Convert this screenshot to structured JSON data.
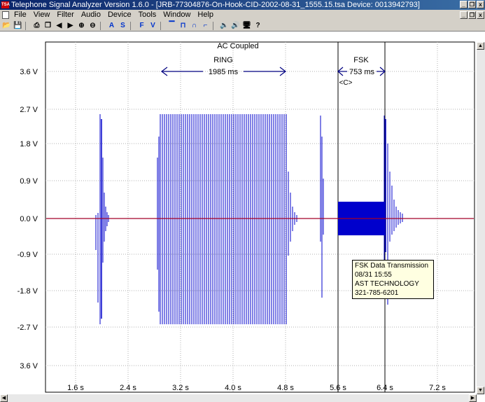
{
  "window": {
    "title": "Telephone Signal Analyzer Version 1.6.0 - [JRB-77304876-On-Hook-CID-2002-08-31_1555.15.tsa  Device: 0013942793]",
    "app_icon_text": "TSA",
    "buttons": [
      "_",
      "❐",
      "x"
    ]
  },
  "menu": {
    "items": [
      "File",
      "View",
      "Filter",
      "Audio",
      "Device",
      "Tools",
      "Window",
      "Help"
    ]
  },
  "toolbar": {
    "tools": [
      "open-icon",
      "save-icon",
      "print-icon",
      "copy-icon",
      "prev-icon",
      "next-icon",
      "zoom-in-icon",
      "zoom-out-icon",
      "A",
      "S",
      "F",
      "V",
      "pulse-icon",
      "ring-icon",
      "step-up-icon",
      "step-down-icon",
      "speaker-icon",
      "speaker-play-icon",
      "device-icon",
      "help-icon"
    ],
    "letter_a": "A",
    "letter_s": "S",
    "letter_f": "F",
    "letter_v": "V"
  },
  "plot": {
    "header": "AC Coupled",
    "y_ticks": [
      "3.6 V",
      "2.7 V",
      "1.8 V",
      "0.9 V",
      "0.0 V",
      "-0.9 V",
      "-1.8 V",
      "-2.7 V",
      "3.6 V"
    ],
    "x_ticks": [
      "1.6 s",
      "2.4 s",
      "3.2 s",
      "4.0 s",
      "4.8 s",
      "5.6 s",
      "6.4 s",
      "7.2 s"
    ],
    "ring_label": "RING",
    "ring_duration": "1985 ms",
    "fsk_label": "FSK",
    "fsk_duration": "753 ms",
    "fsk_marker": "<C>",
    "colors": {
      "trace": "#0000cc",
      "zero_line": "#cc0000",
      "annotation": "#000080",
      "grid": "#b0b0b0"
    }
  },
  "tooltip": {
    "line1": "FSK Data Transmission",
    "line2": "08/31 15:55",
    "line3": "AST TECHNOLOGY",
    "line4": "321-785-6201"
  }
}
